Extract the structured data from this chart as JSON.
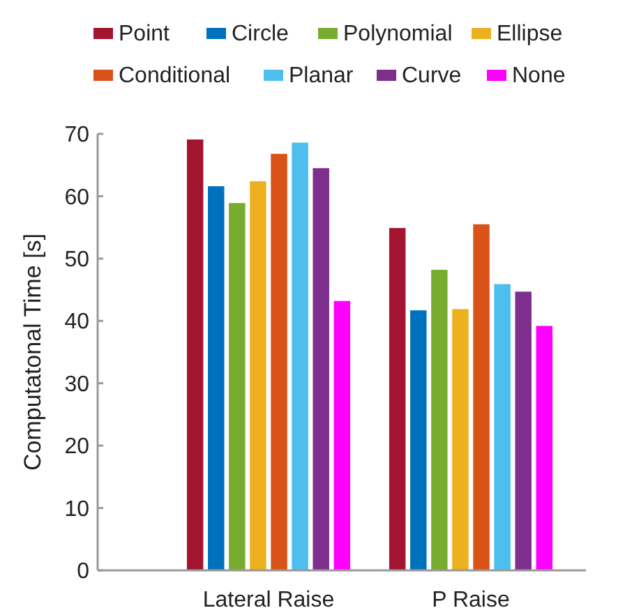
{
  "chart_data": {
    "type": "bar",
    "ylabel": "Computatonal Time [s]",
    "categories": [
      "Lateral Raise",
      "P Raise"
    ],
    "series": [
      {
        "name": "Point",
        "color": "#a2142f",
        "values": [
          69.1,
          54.9
        ]
      },
      {
        "name": "Circle",
        "color": "#0072bd",
        "values": [
          61.6,
          41.7
        ]
      },
      {
        "name": "Polynomial",
        "color": "#77ac30",
        "values": [
          58.9,
          48.2
        ]
      },
      {
        "name": "Ellipse",
        "color": "#edb120",
        "values": [
          62.4,
          41.9
        ]
      },
      {
        "name": "Conditional",
        "color": "#d95319",
        "values": [
          66.8,
          55.5
        ]
      },
      {
        "name": "Planar",
        "color": "#4dbeee",
        "values": [
          68.6,
          45.9
        ]
      },
      {
        "name": "Curve",
        "color": "#7e2f8e",
        "values": [
          64.5,
          44.7
        ]
      },
      {
        "name": "None",
        "color": "#ff00ff",
        "values": [
          43.2,
          39.2
        ]
      }
    ],
    "ylim": [
      0,
      70
    ],
    "yticks": [
      0,
      10,
      20,
      30,
      40,
      50,
      60,
      70
    ],
    "grid": false,
    "legend": "top"
  }
}
